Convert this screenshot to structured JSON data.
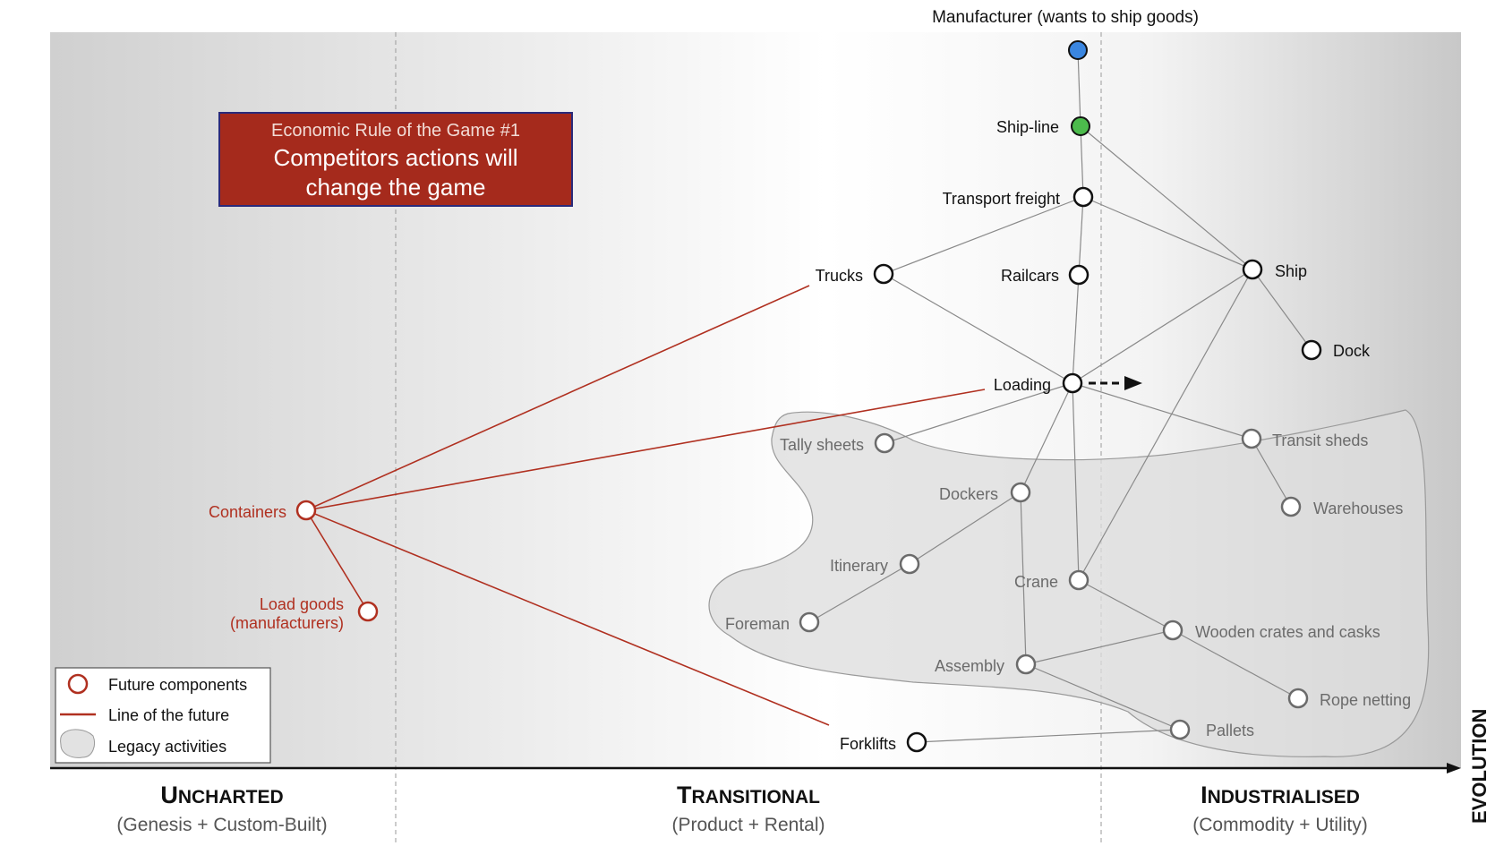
{
  "title": "Manufacturer (wants to ship goods)",
  "stages": [
    {
      "name": "Uncharted",
      "subtitle": "(Genesis + Custom-Built)"
    },
    {
      "name": "Transitional",
      "subtitle": "(Product + Rental)"
    },
    {
      "name": "Industrialised",
      "subtitle": "(Commodity + Utility)"
    }
  ],
  "axis_label": "EVOLUTION",
  "note": {
    "title": "Economic Rule of the Game #1",
    "line1": "Competitors actions will",
    "line2": "change the game"
  },
  "legend": {
    "future": "Future components",
    "line": "Line of the future",
    "legacy": "Legacy activities"
  },
  "components": {
    "manufacturer": "Manufacturer (wants to ship goods)",
    "shipline": "Ship-line",
    "transport": "Transport freight",
    "trucks": "Trucks",
    "railcars": "Railcars",
    "ship": "Ship",
    "dock": "Dock",
    "loading": "Loading",
    "tally": "Tally sheets",
    "transit": "Transit sheds",
    "warehouses": "Warehouses",
    "dockers": "Dockers",
    "itinerary": "Itinerary",
    "crane": "Crane",
    "foreman": "Foreman",
    "crates": "Wooden crates and casks",
    "assembly": "Assembly",
    "rope": "Rope netting",
    "pallets": "Pallets",
    "forklifts": "Forklifts",
    "containers": "Containers",
    "loadgoods1": "Load goods",
    "loadgoods2": "(manufacturers)"
  },
  "colors": {
    "future": "#b03020",
    "note_bg": "#a52a1c",
    "note_border": "#2a2a7a",
    "anchor_blue": "#3a86e0",
    "shipline_green": "#4cbb4c",
    "legacy_fill": "#d9d9d9"
  }
}
